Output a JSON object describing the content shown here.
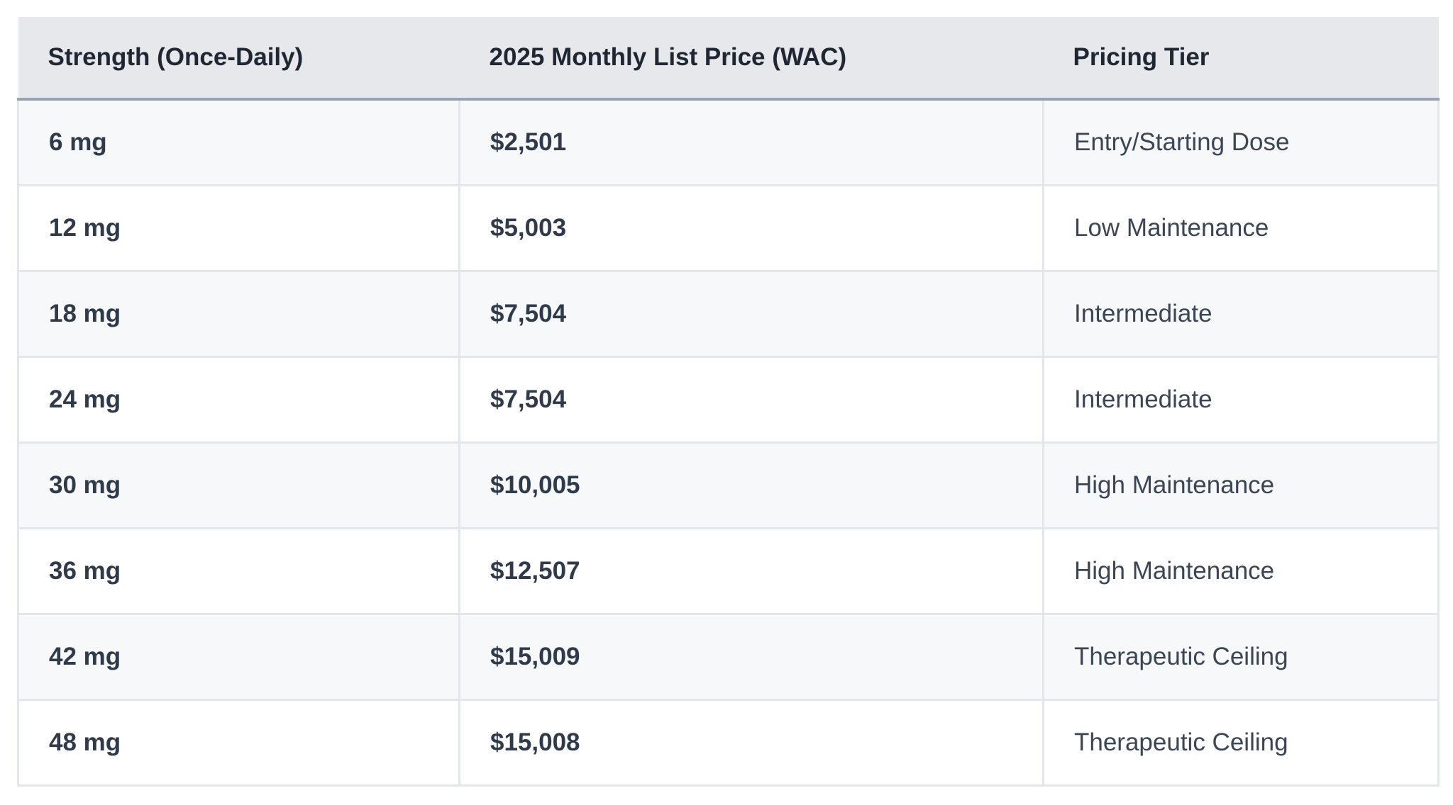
{
  "table": {
    "headers": [
      "Strength (Once-Daily)",
      "2025 Monthly List Price (WAC)",
      "Pricing Tier"
    ],
    "rows": [
      {
        "strength": "6 mg",
        "price": "$2,501",
        "tier": "Entry/Starting Dose"
      },
      {
        "strength": "12 mg",
        "price": "$5,003",
        "tier": "Low Maintenance"
      },
      {
        "strength": "18 mg",
        "price": "$7,504",
        "tier": "Intermediate"
      },
      {
        "strength": "24 mg",
        "price": "$7,504",
        "tier": "Intermediate"
      },
      {
        "strength": "30 mg",
        "price": "$10,005",
        "tier": "High Maintenance"
      },
      {
        "strength": "36 mg",
        "price": "$12,507",
        "tier": "High Maintenance"
      },
      {
        "strength": "42 mg",
        "price": "$15,009",
        "tier": "Therapeutic Ceiling"
      },
      {
        "strength": "48 mg",
        "price": "$15,008",
        "tier": "Therapeutic Ceiling"
      }
    ]
  }
}
